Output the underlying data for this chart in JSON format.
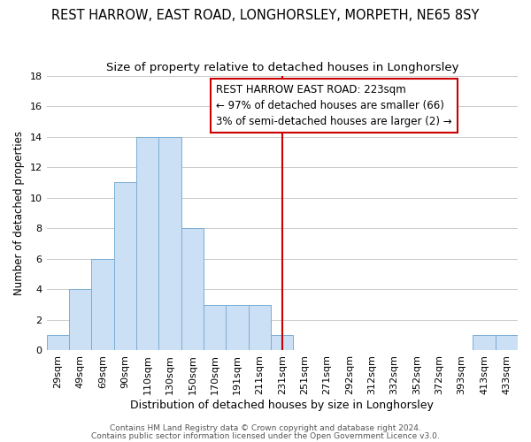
{
  "title": "REST HARROW, EAST ROAD, LONGHORSLEY, MORPETH, NE65 8SY",
  "subtitle": "Size of property relative to detached houses in Longhorsley",
  "xlabel": "Distribution of detached houses by size in Longhorsley",
  "ylabel": "Number of detached properties",
  "bar_labels": [
    "29sqm",
    "49sqm",
    "69sqm",
    "90sqm",
    "110sqm",
    "130sqm",
    "150sqm",
    "170sqm",
    "191sqm",
    "211sqm",
    "231sqm",
    "251sqm",
    "271sqm",
    "292sqm",
    "312sqm",
    "332sqm",
    "352sqm",
    "372sqm",
    "393sqm",
    "413sqm",
    "433sqm"
  ],
  "bar_values": [
    1,
    4,
    6,
    11,
    14,
    14,
    8,
    3,
    3,
    3,
    1,
    0,
    0,
    0,
    0,
    0,
    0,
    0,
    0,
    1,
    1
  ],
  "bar_color": "#cce0f5",
  "bar_edgecolor": "#7badd4",
  "vline_x_index": 10,
  "vline_color": "#cc0000",
  "annotation_box_text": "REST HARROW EAST ROAD: 223sqm\n← 97% of detached houses are smaller (66)\n3% of semi-detached houses are larger (2) →",
  "annotation_box_facecolor": "white",
  "annotation_box_edgecolor": "#cc0000",
  "ylim": [
    0,
    18
  ],
  "yticks": [
    0,
    2,
    4,
    6,
    8,
    10,
    12,
    14,
    16,
    18
  ],
  "background_color": "#ffffff",
  "grid_color": "#cccccc",
  "footer_line1": "Contains HM Land Registry data © Crown copyright and database right 2024.",
  "footer_line2": "Contains public sector information licensed under the Open Government Licence v3.0.",
  "title_fontsize": 10.5,
  "subtitle_fontsize": 9.5,
  "xlabel_fontsize": 9,
  "ylabel_fontsize": 8.5,
  "tick_fontsize": 8,
  "annotation_fontsize": 8.5,
  "footer_fontsize": 6.5
}
